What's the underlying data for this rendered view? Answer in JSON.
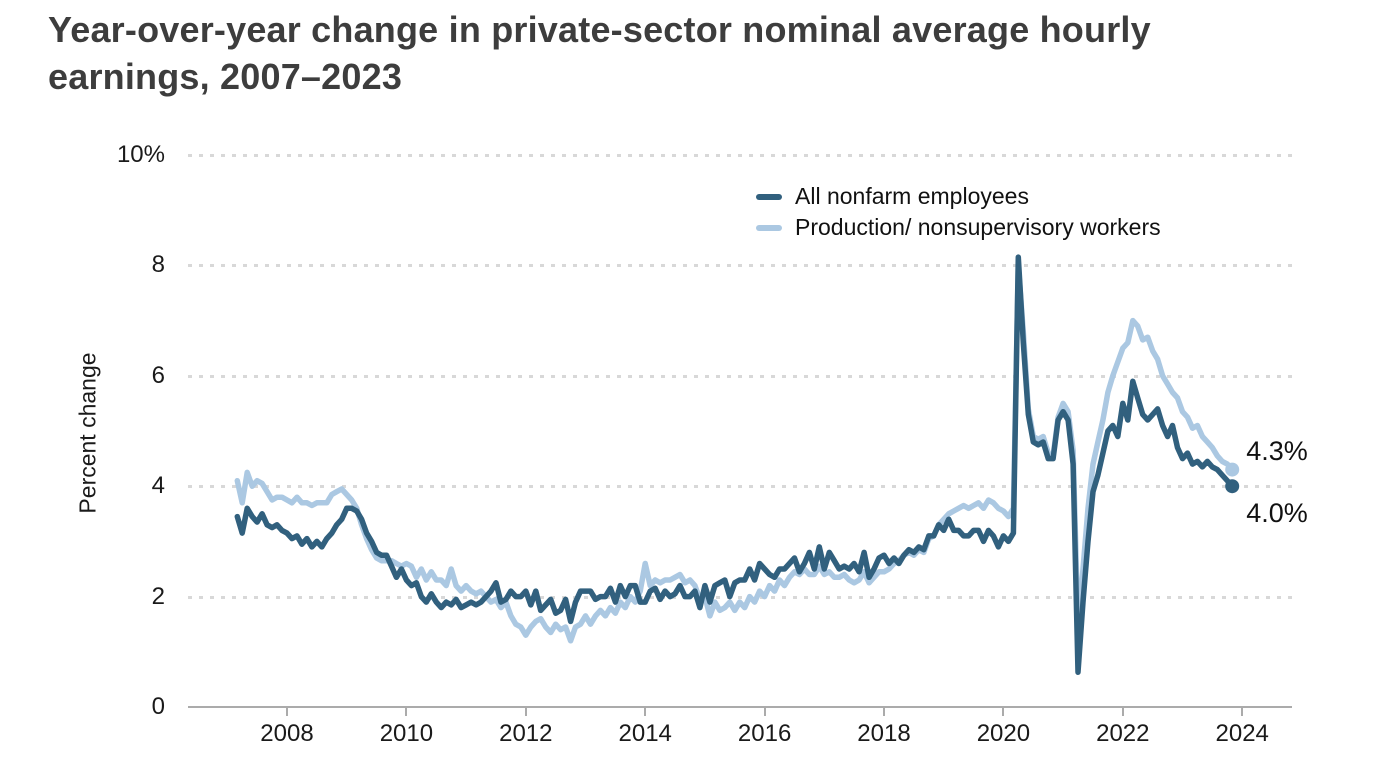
{
  "title": {
    "text": "Year-over-year change in private-sector nominal average hourly earnings, 2007–2023",
    "lines": [
      "Year-over-year change in private-sector nominal average hourly",
      "earnings, 2007–2023"
    ]
  },
  "colors": {
    "title_text": "#3d3d3d",
    "axis_text": "#1a1a1a",
    "gridline": "#d8d8d8",
    "axis_line": "#ababab",
    "series_dark": "#31607e",
    "series_light": "#abc8e2"
  },
  "chart_data": {
    "type": "line",
    "title": "Year-over-year change in private-sector nominal average hourly earnings, 2007–2023",
    "xlabel": "",
    "ylabel": "Percent change",
    "ylim": [
      0,
      10
    ],
    "y_ticks": [
      0,
      2,
      4,
      6,
      8,
      10
    ],
    "y_tick_labels": [
      "0",
      "2",
      "4",
      "6",
      "8",
      "10%"
    ],
    "x_tick_labels": [
      "2008",
      "2010",
      "2012",
      "2014",
      "2016",
      "2018",
      "2020",
      "2022",
      "2024"
    ],
    "x_start": "2007-03",
    "x_end": "2023-11",
    "x_frequency": "monthly",
    "grid": "horizontal-dotted",
    "legend_position": "top-right-inside",
    "series": [
      {
        "name": "All nonfarm employees",
        "color": "#31607e",
        "end_label": "4.0%",
        "end_value": 4.0,
        "values": [
          3.45,
          3.15,
          3.6,
          3.45,
          3.35,
          3.5,
          3.3,
          3.25,
          3.3,
          3.2,
          3.15,
          3.05,
          3.1,
          2.95,
          3.05,
          2.9,
          3.0,
          2.9,
          3.05,
          3.15,
          3.3,
          3.4,
          3.6,
          3.6,
          3.55,
          3.4,
          3.15,
          3.0,
          2.8,
          2.75,
          2.75,
          2.55,
          2.35,
          2.5,
          2.3,
          2.2,
          2.25,
          2.0,
          1.9,
          2.05,
          1.9,
          1.8,
          1.9,
          1.85,
          1.95,
          1.8,
          1.85,
          1.9,
          1.85,
          1.9,
          2.0,
          2.1,
          2.25,
          1.9,
          1.95,
          2.1,
          2.0,
          2.0,
          2.1,
          1.85,
          2.1,
          1.75,
          1.85,
          1.95,
          1.7,
          1.75,
          1.95,
          1.55,
          1.9,
          2.1,
          2.1,
          2.1,
          1.95,
          2.0,
          2.0,
          2.15,
          1.9,
          2.2,
          2.0,
          2.2,
          2.2,
          1.9,
          1.9,
          2.1,
          2.15,
          1.95,
          2.1,
          2.0,
          2.05,
          2.2,
          2.0,
          2.0,
          2.1,
          1.8,
          2.2,
          1.9,
          2.2,
          2.25,
          2.3,
          2.0,
          2.25,
          2.3,
          2.3,
          2.5,
          2.3,
          2.6,
          2.5,
          2.4,
          2.35,
          2.5,
          2.5,
          2.6,
          2.7,
          2.45,
          2.6,
          2.8,
          2.5,
          2.9,
          2.5,
          2.8,
          2.65,
          2.5,
          2.55,
          2.5,
          2.6,
          2.45,
          2.8,
          2.35,
          2.5,
          2.7,
          2.75,
          2.6,
          2.7,
          2.6,
          2.75,
          2.85,
          2.8,
          2.9,
          2.85,
          3.1,
          3.1,
          3.3,
          3.2,
          3.4,
          3.2,
          3.2,
          3.1,
          3.1,
          3.2,
          3.2,
          3.0,
          3.2,
          3.1,
          2.9,
          3.1,
          3.0,
          3.15,
          8.15,
          6.6,
          5.3,
          4.8,
          4.75,
          4.8,
          4.5,
          4.5,
          5.2,
          5.35,
          5.2,
          4.4,
          0.63,
          1.9,
          3.0,
          3.9,
          4.2,
          4.6,
          5.0,
          5.1,
          4.9,
          5.5,
          5.2,
          5.9,
          5.6,
          5.3,
          5.2,
          5.3,
          5.4,
          5.1,
          4.9,
          5.1,
          4.7,
          4.5,
          4.6,
          4.4,
          4.45,
          4.35,
          4.45,
          4.35,
          4.3,
          4.2,
          4.1,
          4.0
        ]
      },
      {
        "name": "Production/ nonsupervisory workers",
        "color": "#abc8e2",
        "end_label": "4.3%",
        "end_value": 4.3,
        "values": [
          4.1,
          3.7,
          4.25,
          4.0,
          4.1,
          4.05,
          3.9,
          3.75,
          3.8,
          3.8,
          3.75,
          3.7,
          3.8,
          3.7,
          3.7,
          3.65,
          3.7,
          3.7,
          3.7,
          3.85,
          3.9,
          3.95,
          3.85,
          3.75,
          3.6,
          3.3,
          3.05,
          2.85,
          2.7,
          2.65,
          2.65,
          2.65,
          2.6,
          2.55,
          2.6,
          2.55,
          2.35,
          2.5,
          2.3,
          2.45,
          2.3,
          2.3,
          2.2,
          2.5,
          2.2,
          2.1,
          2.2,
          2.1,
          2.05,
          2.1,
          2.0,
          1.9,
          1.95,
          1.8,
          1.9,
          1.65,
          1.5,
          1.45,
          1.3,
          1.45,
          1.55,
          1.6,
          1.45,
          1.35,
          1.5,
          1.4,
          1.45,
          1.2,
          1.45,
          1.5,
          1.65,
          1.5,
          1.65,
          1.75,
          1.65,
          1.8,
          1.7,
          1.9,
          1.8,
          2.0,
          1.9,
          2.1,
          2.6,
          2.2,
          2.3,
          2.25,
          2.3,
          2.3,
          2.35,
          2.4,
          2.25,
          2.3,
          2.2,
          1.95,
          2.0,
          1.65,
          1.9,
          1.75,
          1.8,
          1.9,
          1.75,
          1.9,
          1.8,
          2.0,
          1.9,
          2.1,
          2.0,
          2.2,
          2.1,
          2.3,
          2.2,
          2.35,
          2.45,
          2.4,
          2.5,
          2.4,
          2.4,
          2.55,
          2.4,
          2.45,
          2.35,
          2.35,
          2.4,
          2.3,
          2.25,
          2.3,
          2.45,
          2.25,
          2.35,
          2.45,
          2.45,
          2.5,
          2.6,
          2.65,
          2.75,
          2.8,
          2.75,
          2.85,
          2.8,
          3.05,
          3.1,
          3.3,
          3.4,
          3.5,
          3.55,
          3.6,
          3.65,
          3.6,
          3.65,
          3.7,
          3.6,
          3.75,
          3.7,
          3.6,
          3.55,
          3.45,
          3.6,
          8.0,
          6.8,
          5.4,
          4.9,
          4.85,
          4.9,
          4.6,
          4.55,
          5.25,
          5.5,
          5.35,
          4.65,
          1.45,
          2.5,
          3.6,
          4.4,
          4.8,
          5.2,
          5.7,
          6.0,
          6.25,
          6.5,
          6.6,
          7.0,
          6.9,
          6.65,
          6.7,
          6.45,
          6.3,
          6.0,
          5.85,
          5.7,
          5.6,
          5.35,
          5.25,
          5.05,
          5.1,
          4.9,
          4.8,
          4.7,
          4.55,
          4.45,
          4.4,
          4.3
        ]
      }
    ]
  }
}
